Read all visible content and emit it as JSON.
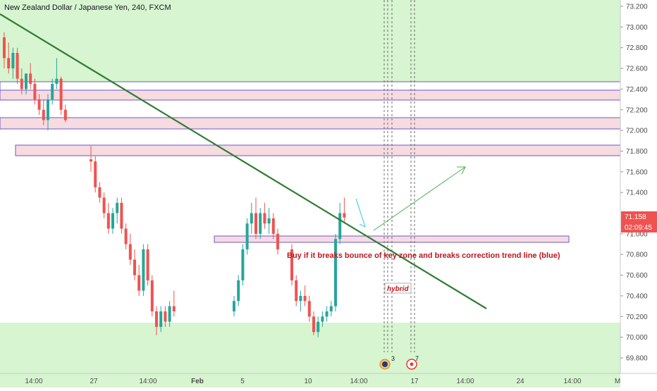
{
  "header": {
    "symbol_title": "New Zealand Dollar / Japanese Yen, 240, FXCM"
  },
  "colors": {
    "background_zone": "#d7f5d0",
    "resistance_zone_fill": "#f6dbe0",
    "zone_border": "#6a5acd",
    "trendline": "#2e7d32",
    "arrow": "#4caf50",
    "annotation_text": "#c0161e",
    "up_candle": "#26a69a",
    "down_candle": "#ef5350",
    "price_badge": "#ef5350"
  },
  "price_axis": {
    "labels": [
      "73.200",
      "73.000",
      "72.800",
      "72.600",
      "72.400",
      "72.200",
      "72.000",
      "71.800",
      "71.600",
      "71.400",
      "71.000",
      "70.800",
      "70.600",
      "70.400",
      "70.200",
      "70.000",
      "69.800"
    ],
    "last_price": "71.158",
    "countdown": "02:09:45"
  },
  "time_axis": {
    "labels": [
      "14:00",
      "27",
      "14:00",
      "Feb",
      "5",
      "10",
      "14:00",
      "17",
      "14:00",
      "24",
      "14:00",
      "M"
    ]
  },
  "annotations": {
    "main_note": "Buy if it breaks bounce of key zone and breaks correction trend line (blue)",
    "tag": "hybrid",
    "event_count_1": "3",
    "event_count_2": "7"
  },
  "chart_data": {
    "type": "candlestick",
    "title": "New Zealand Dollar / Japanese Yen, 240, FXCM",
    "ylim": [
      69.7,
      73.3
    ],
    "y_ticks": [
      73.2,
      73.0,
      72.8,
      72.6,
      72.4,
      72.2,
      72.0,
      71.8,
      71.6,
      71.4,
      71.0,
      70.8,
      70.6,
      70.4,
      70.2,
      70.0,
      69.8
    ],
    "last_price": 71.158,
    "series": [
      {
        "segment": "late-january-top",
        "candles": [
          [
            72.9,
            72.95,
            72.6,
            72.7
          ],
          [
            72.7,
            72.85,
            72.55,
            72.6
          ],
          [
            72.6,
            72.8,
            72.5,
            72.75
          ],
          [
            72.75,
            72.8,
            72.45,
            72.5
          ],
          [
            72.5,
            72.6,
            72.35,
            72.4
          ],
          [
            72.4,
            72.55,
            72.35,
            72.55
          ],
          [
            72.55,
            72.65,
            72.4,
            72.45
          ],
          [
            72.45,
            72.5,
            72.25,
            72.3
          ],
          [
            72.3,
            72.35,
            72.15,
            72.2
          ],
          [
            72.2,
            72.3,
            72.05,
            72.1
          ],
          [
            72.1,
            72.35,
            72.0,
            72.3
          ],
          [
            72.3,
            72.5,
            72.25,
            72.45
          ],
          [
            72.45,
            72.7,
            72.4,
            72.5
          ],
          [
            72.5,
            72.52,
            72.15,
            72.2
          ],
          [
            72.2,
            72.25,
            72.08,
            72.1
          ]
        ]
      },
      {
        "segment": "drop-to-70",
        "candles": [
          [
            71.72,
            71.85,
            71.6,
            71.7
          ],
          [
            71.7,
            71.75,
            71.4,
            71.45
          ],
          [
            71.45,
            71.5,
            71.3,
            71.35
          ],
          [
            71.35,
            71.4,
            71.15,
            71.2
          ],
          [
            71.2,
            71.3,
            71.0,
            71.05
          ],
          [
            71.05,
            71.25,
            71.0,
            71.2
          ],
          [
            71.2,
            71.35,
            71.1,
            71.3
          ],
          [
            71.3,
            71.35,
            71.0,
            71.05
          ],
          [
            71.05,
            71.1,
            70.85,
            70.9
          ],
          [
            70.9,
            71.0,
            70.7,
            70.75
          ],
          [
            70.75,
            70.85,
            70.55,
            70.6
          ],
          [
            70.6,
            70.7,
            70.4,
            70.45
          ],
          [
            70.45,
            70.9,
            70.4,
            70.85
          ],
          [
            70.85,
            70.9,
            70.5,
            70.55
          ],
          [
            70.55,
            70.6,
            70.2,
            70.25
          ],
          [
            70.25,
            70.3,
            70.02,
            70.1
          ],
          [
            70.1,
            70.3,
            70.05,
            70.25
          ],
          [
            70.25,
            70.3,
            70.1,
            70.15
          ],
          [
            70.15,
            70.35,
            70.1,
            70.3
          ],
          [
            70.3,
            70.45,
            70.2,
            70.25
          ]
        ]
      },
      {
        "segment": "rally-to-71.3",
        "candles": [
          [
            70.25,
            70.4,
            70.2,
            70.35
          ],
          [
            70.35,
            70.6,
            70.3,
            70.55
          ],
          [
            70.55,
            70.9,
            70.5,
            70.85
          ],
          [
            70.85,
            71.15,
            70.8,
            71.1
          ],
          [
            71.1,
            71.3,
            71.0,
            71.2
          ],
          [
            71.2,
            71.35,
            70.95,
            71.0
          ],
          [
            71.0,
            71.25,
            70.95,
            71.2
          ],
          [
            71.2,
            71.3,
            71.05,
            71.1
          ],
          [
            71.1,
            71.25,
            71.0,
            71.15
          ],
          [
            71.15,
            71.2,
            70.95,
            71.0
          ],
          [
            71.0,
            71.05,
            70.8,
            70.85
          ]
        ]
      },
      {
        "segment": "second-drop-and-breakout",
        "candles": [
          [
            70.85,
            70.9,
            70.5,
            70.55
          ],
          [
            70.55,
            70.6,
            70.3,
            70.35
          ],
          [
            70.35,
            70.45,
            70.25,
            70.4
          ],
          [
            70.4,
            70.5,
            70.3,
            70.35
          ],
          [
            70.35,
            70.4,
            70.15,
            70.2
          ],
          [
            70.2,
            70.25,
            70.02,
            70.05
          ],
          [
            70.05,
            70.2,
            70.0,
            70.15
          ],
          [
            70.15,
            70.25,
            70.1,
            70.2
          ],
          [
            70.2,
            70.3,
            70.15,
            70.25
          ],
          [
            70.25,
            70.35,
            70.2,
            70.3
          ],
          [
            70.3,
            71.0,
            70.25,
            70.95
          ],
          [
            70.95,
            71.3,
            70.9,
            71.2
          ],
          [
            71.2,
            71.35,
            71.1,
            71.158
          ]
        ]
      }
    ],
    "horizontal_zones": [
      {
        "from": 72.36,
        "to": 72.47,
        "style": "outline"
      },
      {
        "from": 72.28,
        "to": 72.37,
        "style": "filled"
      },
      {
        "from": 72.01,
        "to": 72.12,
        "style": "filled"
      },
      {
        "from": 71.74,
        "to": 71.85,
        "style": "filled"
      },
      {
        "from": 70.95,
        "to": 71.02,
        "style": "filled"
      }
    ],
    "trendline": {
      "from_price": 73.15,
      "to_price": 70.25
    }
  }
}
